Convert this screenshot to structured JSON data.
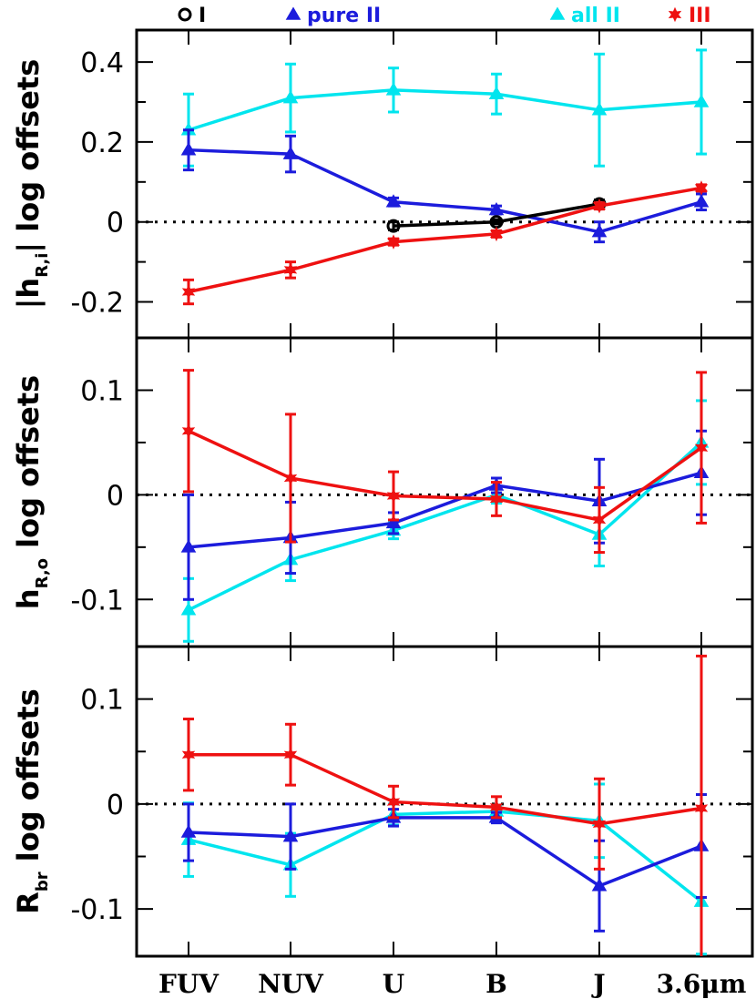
{
  "chart_data": [
    {
      "type": "line",
      "panel": "top",
      "ylabel_main": "|h",
      "ylabel_sub": "R,i",
      "ylabel_tail": "| log offsets",
      "ylim": [
        -0.29,
        0.48
      ],
      "yticks": [
        -0.2,
        0,
        0.2,
        0.4
      ],
      "yticklabels": [
        "-0.2",
        "0",
        "0.2",
        "0.4"
      ],
      "series": [
        {
          "key": "all2",
          "name": "all II",
          "color": "#00e5ee",
          "marker": "triangle",
          "values": [
            0.23,
            0.31,
            0.33,
            0.32,
            0.28,
            0.3
          ],
          "err": [
            0.09,
            0.085,
            0.055,
            0.05,
            0.14,
            0.13
          ]
        },
        {
          "key": "pure2",
          "name": "pure II",
          "color": "#1c1cdc",
          "marker": "triangle",
          "values": [
            0.18,
            0.17,
            0.05,
            0.03,
            -0.025,
            0.05
          ],
          "err": [
            0.05,
            0.045,
            0.01,
            0.01,
            0.025,
            0.02
          ]
        },
        {
          "key": "one",
          "name": "I",
          "color": "#000000",
          "marker": "circle",
          "values": [
            null,
            null,
            -0.01,
            0.0,
            0.045,
            null
          ],
          "err": [
            null,
            null,
            0.01,
            0.005,
            0.01,
            null
          ]
        },
        {
          "key": "three",
          "name": "III",
          "color": "#ee1111",
          "marker": "star",
          "values": [
            -0.175,
            -0.12,
            -0.05,
            -0.03,
            0.04,
            0.085
          ],
          "err": [
            0.03,
            0.02,
            0.008,
            0.008,
            0.008,
            0.008
          ]
        }
      ]
    },
    {
      "type": "line",
      "panel": "middle",
      "ylabel_main": "h",
      "ylabel_sub": "R,o",
      "ylabel_tail": " log offsets",
      "ylim": [
        -0.145,
        0.15
      ],
      "yticks": [
        -0.1,
        0,
        0.1
      ],
      "yticklabels": [
        "-0.1",
        "0",
        "0.1"
      ],
      "series": [
        {
          "key": "all2",
          "name": "all II",
          "color": "#00e5ee",
          "marker": "triangle",
          "values": [
            -0.11,
            -0.062,
            -0.034,
            0.0,
            -0.038,
            0.05
          ],
          "err": [
            0.03,
            0.02,
            0.008,
            0.008,
            0.03,
            0.04
          ]
        },
        {
          "key": "pure2",
          "name": "pure II",
          "color": "#1c1cdc",
          "marker": "triangle",
          "values": [
            -0.05,
            -0.041,
            -0.027,
            0.009,
            -0.006,
            0.021
          ],
          "err": [
            0.05,
            0.034,
            0.01,
            0.007,
            0.04,
            0.04
          ]
        },
        {
          "key": "three",
          "name": "III",
          "color": "#ee1111",
          "marker": "star",
          "values": [
            0.061,
            0.016,
            -0.001,
            -0.004,
            -0.024,
            0.045
          ],
          "err": [
            0.058,
            0.061,
            0.023,
            0.016,
            0.031,
            0.072
          ]
        }
      ]
    },
    {
      "type": "line",
      "panel": "bottom",
      "ylabel_main": "R",
      "ylabel_sub": "br",
      "ylabel_tail": " log offsets",
      "ylim": [
        -0.145,
        0.15
      ],
      "yticks": [
        -0.1,
        0,
        0.1
      ],
      "yticklabels": [
        "-0.1",
        "0",
        "0.1"
      ],
      "series": [
        {
          "key": "all2",
          "name": "all II",
          "color": "#00e5ee",
          "marker": "triangle",
          "values": [
            -0.034,
            -0.058,
            -0.01,
            -0.007,
            -0.016,
            -0.093
          ],
          "err": [
            0.035,
            0.03,
            0.01,
            0.006,
            0.035,
            0.05
          ]
        },
        {
          "key": "pure2",
          "name": "pure II",
          "color": "#1c1cdc",
          "marker": "triangle",
          "values": [
            -0.027,
            -0.031,
            -0.013,
            -0.013,
            -0.078,
            -0.04
          ],
          "err": [
            0.027,
            0.031,
            0.008,
            0.005,
            0.043,
            0.049
          ]
        },
        {
          "key": "three",
          "name": "III",
          "color": "#ee1111",
          "marker": "star",
          "values": [
            0.047,
            0.047,
            0.002,
            -0.003,
            -0.019,
            -0.004
          ],
          "err": [
            0.034,
            0.029,
            0.015,
            0.01,
            0.043,
            0.145
          ]
        }
      ]
    }
  ],
  "categories": [
    "FUV",
    "NUV",
    "U",
    "B",
    "J",
    "3.6μm"
  ],
  "legend": [
    {
      "label": "I",
      "color": "#000000",
      "marker": "circle"
    },
    {
      "label": "pure II",
      "color": "#1c1cdc",
      "marker": "triangle"
    },
    {
      "label": "all II",
      "color": "#00e5ee",
      "marker": "triangle"
    },
    {
      "label": "III",
      "color": "#ee1111",
      "marker": "star"
    }
  ]
}
